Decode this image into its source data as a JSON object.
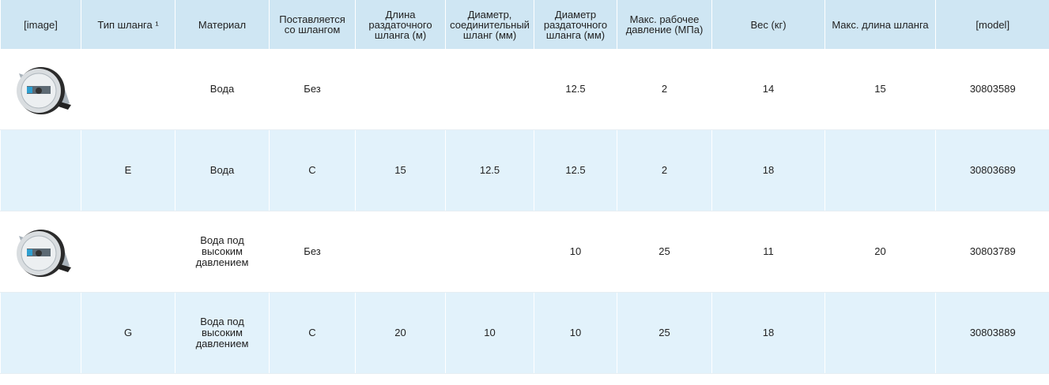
{
  "table": {
    "headers": [
      "[image]",
      "Тип шланга ¹",
      "Материал",
      "Поставляется со шлангом",
      "Длина раздаточного шланга (м)",
      "Диаметр, соединительный шланг (мм)",
      "Диаметр раздаточного шланга (мм)",
      "Макс. рабочее давление (МПа)",
      "Вес (кг)",
      "Макс. длина шланга",
      "[model]"
    ],
    "rows": [
      [
        null,
        "Вода",
        "Без",
        null,
        null,
        12.5,
        2,
        14,
        15,
        30803589
      ],
      [
        "E",
        "Вода",
        "С",
        15,
        12.5,
        12.5,
        2,
        18,
        null,
        30803689
      ],
      [
        null,
        "Вода под высоким давлением",
        "Без",
        null,
        null,
        10,
        25,
        11,
        20,
        30803789
      ],
      [
        "G",
        "Вода под высоким давлением",
        "С",
        20,
        10,
        10,
        25,
        18,
        null,
        30803889
      ]
    ]
  }
}
